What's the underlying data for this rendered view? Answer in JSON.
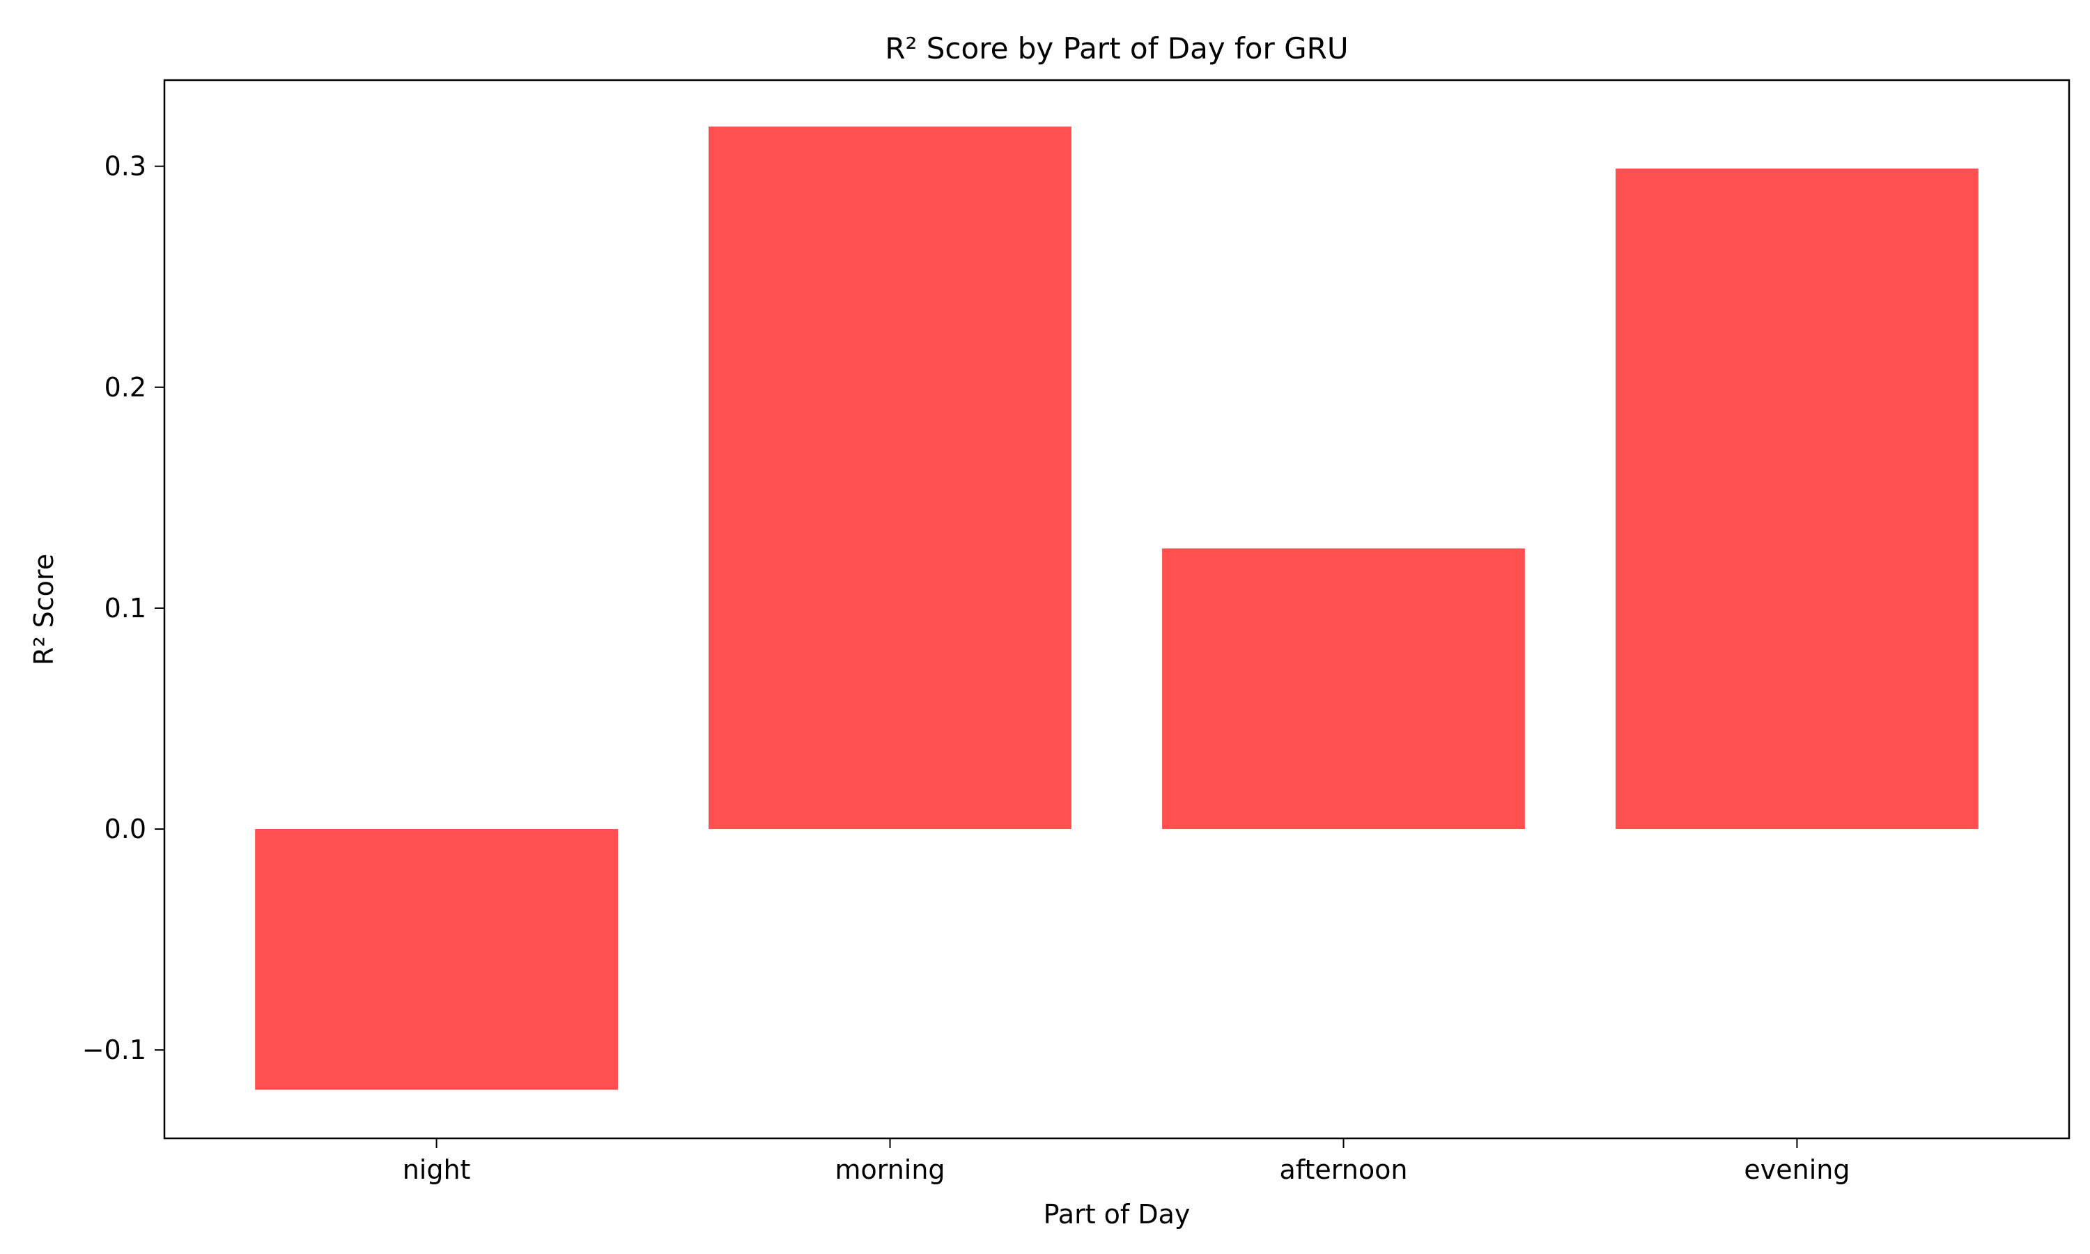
{
  "chart_data": {
    "type": "bar",
    "title": "R² Score by Part of Day for GRU",
    "xlabel": "Part of Day",
    "ylabel": "R² Score",
    "categories": [
      "night",
      "morning",
      "afternoon",
      "evening"
    ],
    "values": [
      -0.118,
      0.318,
      0.127,
      0.299
    ],
    "ylim": [
      -0.14,
      0.339
    ],
    "yticks": [
      -0.1,
      0.0,
      0.1,
      0.2,
      0.3
    ],
    "ytick_labels": [
      "−0.1",
      "0.0",
      "0.1",
      "0.2",
      "0.3"
    ],
    "bar_color": "#ff4f4f",
    "grid": false,
    "legend": "none"
  }
}
